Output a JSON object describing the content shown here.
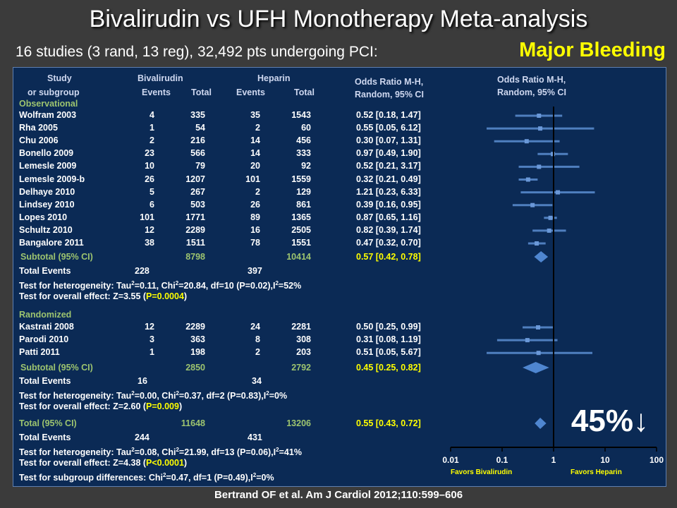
{
  "title": "Bivalirudin vs UFH Monotherapy Meta-analysis",
  "subtitle": "16 studies (3 rand, 13 reg), 32,492 pts undergoing PCI:",
  "badge": "Major Bleeding",
  "citation": "Bertrand OF et al. Am J Cardiol 2012;110:599–606",
  "headers": {
    "study1": "Study",
    "study2": "or subgroup",
    "group1": "Bivalirudin",
    "group2": "Heparin",
    "events": "Events",
    "total": "Total",
    "or1": "Odds Ratio M-H,",
    "or2": "Random, 95% CI",
    "plot1": "Odds Ratio M-H,",
    "plot2": "Random, 95% CI"
  },
  "sections": {
    "observational": "Observational",
    "randomized": "Randomized"
  },
  "subtotal_obs": {
    "label": "Subtotal (95% CI)",
    "b_total": "8798",
    "h_total": "10414",
    "ci": "0.57 [0.42, 0.78]"
  },
  "obs_events": {
    "label": "Total Events",
    "b": "228",
    "h": "397"
  },
  "obs_het": {
    "prefix": "Test for heterogeneity: Tau",
    "mid": "=0.11, Chi",
    "tail": "=20.84, df=10 (P=0.02),I",
    "end": "=52%"
  },
  "obs_overall": {
    "prefix": "Test for overall effect: Z=3.55 (",
    "p": "P=0.0004",
    "end": ")"
  },
  "subtotal_rand": {
    "label": "Subtotal (95% CI)",
    "b_total": "2850",
    "h_total": "2792",
    "ci": "0.45 [0.25, 0.82]"
  },
  "rand_events": {
    "label": "Total Events",
    "b": "16",
    "h": "34"
  },
  "rand_het": {
    "prefix": "Test for heterogeneity: Tau",
    "mid": "=0.00, Chi",
    "tail": "=0.37, df=2 (P=0.83),I",
    "end": "=0%"
  },
  "rand_overall": {
    "prefix": "Test for overall effect: Z=2.60 (",
    "p": "P=0.009",
    "end": ")"
  },
  "total": {
    "label": "Total (95% CI)",
    "b_total": "11648",
    "h_total": "13206",
    "ci": "0.55 [0.43, 0.72]"
  },
  "total_events": {
    "label": "Total Events",
    "b": "244",
    "h": "431"
  },
  "total_het": {
    "prefix": "Test for heterogeneity: Tau",
    "mid": "=0.08, Chi",
    "tail": "=21.99, df=13 (P=0.06),I",
    "end": "=41%"
  },
  "total_overall": {
    "prefix": "Test for overall effect: Z=4.38 (",
    "p": "P<0.0001",
    "end": ")"
  },
  "subgroup_diff": {
    "prefix": "Test for subgroup differences: Chi",
    "tail": "=0.47, df=1 (P=0.49),I",
    "end": "=0%"
  },
  "sup2": "2",
  "reduction": "45%↓",
  "chart_data": {
    "type": "forest",
    "x_scale": "log",
    "xlim": [
      0.01,
      100
    ],
    "ticks": [
      "0.01",
      "0.1",
      "1",
      "10",
      "100"
    ],
    "favors_left": "Favors Bivalirudin",
    "favors_right": "Favors Heparin",
    "studies": [
      {
        "name": "Wolfram 2003",
        "group": "obs",
        "be": "4",
        "bt": "335",
        "he": "35",
        "ht": "1543",
        "ci": "0.52 [0.18, 1.47]",
        "or": 0.52,
        "lo": 0.18,
        "hi": 1.47
      },
      {
        "name": "Rha 2005",
        "group": "obs",
        "be": "1",
        "bt": "54",
        "he": "2",
        "ht": "60",
        "ci": "0.55 [0.05, 6.12]",
        "or": 0.55,
        "lo": 0.05,
        "hi": 6.12
      },
      {
        "name": "Chu 2006",
        "group": "obs",
        "be": "2",
        "bt": "216",
        "he": "14",
        "ht": "456",
        "ci": "0.30 [0.07, 1.31]",
        "or": 0.3,
        "lo": 0.07,
        "hi": 1.31
      },
      {
        "name": "Bonello 2009",
        "group": "obs",
        "be": "23",
        "bt": "566",
        "he": "14",
        "ht": "333",
        "ci": "0.97 [0.49, 1.90]",
        "or": 0.97,
        "lo": 0.49,
        "hi": 1.9
      },
      {
        "name": "Lemesle 2009",
        "group": "obs",
        "be": "10",
        "bt": "79",
        "he": "20",
        "ht": "92",
        "ci": "0.52 [0.21, 3.17]",
        "or": 0.52,
        "lo": 0.21,
        "hi": 3.17
      },
      {
        "name": "Lemesle 2009-b",
        "group": "obs",
        "be": "26",
        "bt": "1207",
        "he": "101",
        "ht": "1559",
        "ci": "0.32 [0.21, 0.49]",
        "or": 0.32,
        "lo": 0.21,
        "hi": 0.49
      },
      {
        "name": "Delhaye 2010",
        "group": "obs",
        "be": "5",
        "bt": "267",
        "he": "2",
        "ht": "129",
        "ci": "1.21 [0.23, 6.33]",
        "or": 1.21,
        "lo": 0.23,
        "hi": 6.33
      },
      {
        "name": "Lindsey 2010",
        "group": "obs",
        "be": "6",
        "bt": "503",
        "he": "26",
        "ht": "861",
        "ci": "0.39 [0.16, 0.95]",
        "or": 0.39,
        "lo": 0.16,
        "hi": 0.95
      },
      {
        "name": "Lopes 2010",
        "group": "obs",
        "be": "101",
        "bt": "1771",
        "he": "89",
        "ht": "1365",
        "ci": "0.87 [0.65, 1.16]",
        "or": 0.87,
        "lo": 0.65,
        "hi": 1.16
      },
      {
        "name": "Schultz 2010",
        "group": "obs",
        "be": "12",
        "bt": "2289",
        "he": "16",
        "ht": "2505",
        "ci": "0.82 [0.39, 1.74]",
        "or": 0.82,
        "lo": 0.39,
        "hi": 1.74
      },
      {
        "name": "Bangalore 2011",
        "group": "obs",
        "be": "38",
        "bt": "1511",
        "he": "78",
        "ht": "1551",
        "ci": "0.47 [0.32, 0.70]",
        "or": 0.47,
        "lo": 0.32,
        "hi": 0.7
      },
      {
        "name": "Kastrati 2008",
        "group": "rand",
        "be": "12",
        "bt": "2289",
        "he": "24",
        "ht": "2281",
        "ci": "0.50 [0.25, 0.99]",
        "or": 0.5,
        "lo": 0.25,
        "hi": 0.99
      },
      {
        "name": "Parodi 2010",
        "group": "rand",
        "be": "3",
        "bt": "363",
        "he": "8",
        "ht": "308",
        "ci": "0.31 [0.08, 1.19]",
        "or": 0.31,
        "lo": 0.08,
        "hi": 1.19
      },
      {
        "name": "Patti 2011",
        "group": "rand",
        "be": "1",
        "bt": "198",
        "he": "2",
        "ht": "203",
        "ci": "0.51 [0.05, 5.67]",
        "or": 0.51,
        "lo": 0.05,
        "hi": 5.67
      }
    ],
    "pooled": [
      {
        "name": "Subtotal (95% CI) Observational",
        "or": 0.57,
        "lo": 0.42,
        "hi": 0.78
      },
      {
        "name": "Subtotal (95% CI) Randomized",
        "or": 0.45,
        "lo": 0.25,
        "hi": 0.82
      },
      {
        "name": "Total (95% CI)",
        "or": 0.55,
        "lo": 0.43,
        "hi": 0.72
      }
    ]
  }
}
